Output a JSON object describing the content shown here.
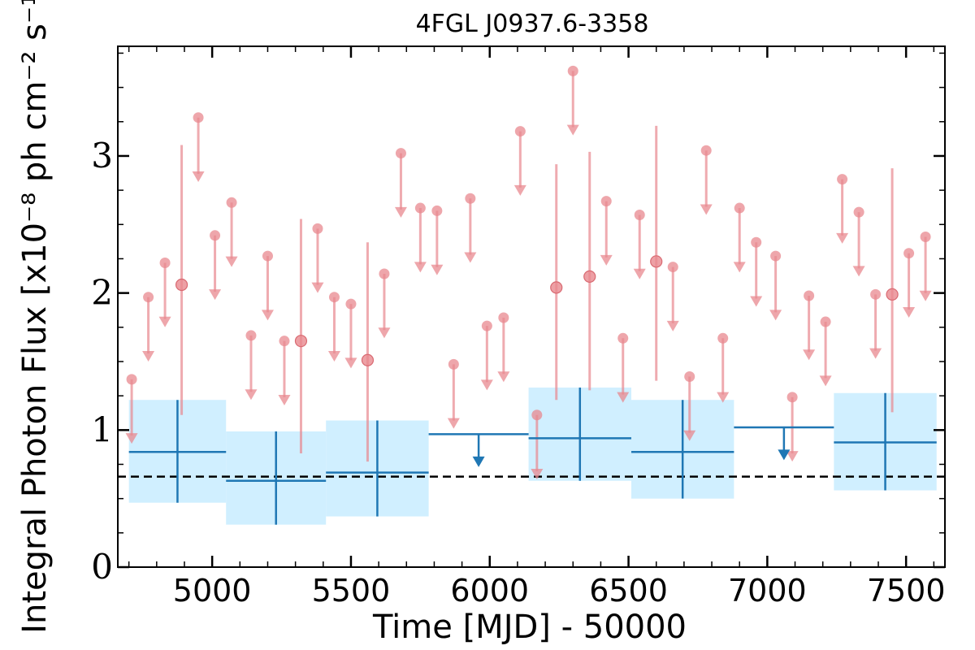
{
  "chart_data": {
    "type": "scatter",
    "title": "4FGL J0937.6-3358",
    "xlabel": "Time [MJD] - 50000",
    "ylabel": "Integral Photon Flux [x10⁻⁸ ph cm⁻² s⁻¹]",
    "xlim": [
      4660,
      7640
    ],
    "ylim": [
      0,
      3.8
    ],
    "xticks": [
      5000,
      5500,
      6000,
      6500,
      7000,
      7500
    ],
    "yticks": [
      0,
      1,
      2,
      3
    ],
    "colors": {
      "short_bins": "#e8888f",
      "long_bins": "#1f77b4",
      "long_bins_band": "#d0efff",
      "mean_line": "#000000"
    },
    "mean_flux": 0.66,
    "short_bins_upper_limits": [
      {
        "x": 4710,
        "y": 1.37
      },
      {
        "x": 4770,
        "y": 1.97
      },
      {
        "x": 4830,
        "y": 2.22
      },
      {
        "x": 4950,
        "y": 3.28
      },
      {
        "x": 5010,
        "y": 2.42
      },
      {
        "x": 5070,
        "y": 2.66
      },
      {
        "x": 5140,
        "y": 1.69
      },
      {
        "x": 5200,
        "y": 2.27
      },
      {
        "x": 5260,
        "y": 1.65
      },
      {
        "x": 5380,
        "y": 2.47
      },
      {
        "x": 5440,
        "y": 1.97
      },
      {
        "x": 5500,
        "y": 1.92
      },
      {
        "x": 5620,
        "y": 2.14
      },
      {
        "x": 5680,
        "y": 3.02
      },
      {
        "x": 5750,
        "y": 2.62
      },
      {
        "x": 5810,
        "y": 2.6
      },
      {
        "x": 5870,
        "y": 1.48
      },
      {
        "x": 5930,
        "y": 2.69
      },
      {
        "x": 5990,
        "y": 1.76
      },
      {
        "x": 6050,
        "y": 1.82
      },
      {
        "x": 6110,
        "y": 3.18
      },
      {
        "x": 6170,
        "y": 1.11
      },
      {
        "x": 6300,
        "y": 3.62
      },
      {
        "x": 6420,
        "y": 2.67
      },
      {
        "x": 6480,
        "y": 1.67
      },
      {
        "x": 6540,
        "y": 2.57
      },
      {
        "x": 6660,
        "y": 2.19
      },
      {
        "x": 6720,
        "y": 1.39
      },
      {
        "x": 6780,
        "y": 3.04
      },
      {
        "x": 6840,
        "y": 1.67
      },
      {
        "x": 6900,
        "y": 2.62
      },
      {
        "x": 6960,
        "y": 2.37
      },
      {
        "x": 7030,
        "y": 2.27
      },
      {
        "x": 7090,
        "y": 1.24
      },
      {
        "x": 7150,
        "y": 1.98
      },
      {
        "x": 7210,
        "y": 1.79
      },
      {
        "x": 7270,
        "y": 2.83
      },
      {
        "x": 7330,
        "y": 2.59
      },
      {
        "x": 7390,
        "y": 1.99
      },
      {
        "x": 7510,
        "y": 2.29
      },
      {
        "x": 7570,
        "y": 2.41
      }
    ],
    "short_bins_detections": [
      {
        "x": 4890,
        "y": 2.06,
        "ylow": 1.11,
        "yhigh": 3.08
      },
      {
        "x": 5320,
        "y": 1.65,
        "ylow": 0.83,
        "yhigh": 2.54
      },
      {
        "x": 5560,
        "y": 1.51,
        "ylow": 0.77,
        "yhigh": 2.37
      },
      {
        "x": 6240,
        "y": 2.04,
        "ylow": 1.22,
        "yhigh": 2.94
      },
      {
        "x": 6360,
        "y": 2.12,
        "ylow": 1.29,
        "yhigh": 3.03
      },
      {
        "x": 6600,
        "y": 2.23,
        "ylow": 1.36,
        "yhigh": 3.22
      },
      {
        "x": 7450,
        "y": 1.99,
        "ylow": 1.13,
        "yhigh": 2.91
      }
    ],
    "long_bins_detections": [
      {
        "x0": 4700,
        "x1": 5050,
        "y": 0.84,
        "ylow": 0.47,
        "yhigh": 1.22
      },
      {
        "x0": 5050,
        "x1": 5410,
        "y": 0.63,
        "ylow": 0.31,
        "yhigh": 0.99
      },
      {
        "x0": 5410,
        "x1": 5780,
        "y": 0.69,
        "ylow": 0.37,
        "yhigh": 1.07
      },
      {
        "x0": 6140,
        "x1": 6510,
        "y": 0.94,
        "ylow": 0.63,
        "yhigh": 1.31
      },
      {
        "x0": 6510,
        "x1": 6880,
        "y": 0.84,
        "ylow": 0.5,
        "yhigh": 1.22
      },
      {
        "x0": 7240,
        "x1": 7610,
        "y": 0.91,
        "ylow": 0.56,
        "yhigh": 1.27
      }
    ],
    "long_bins_upper_limits": [
      {
        "x0": 5780,
        "x1": 6140,
        "y": 0.97
      },
      {
        "x0": 6880,
        "x1": 7240,
        "y": 1.02
      }
    ]
  }
}
